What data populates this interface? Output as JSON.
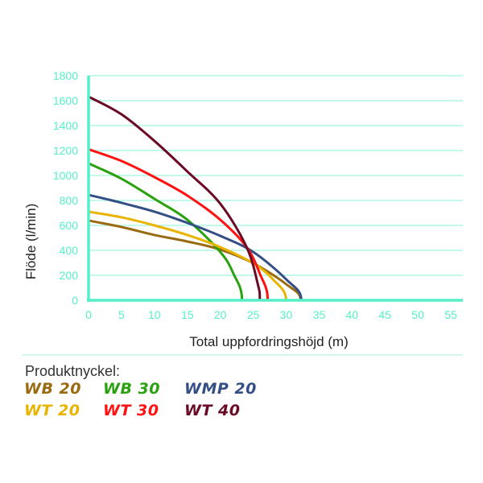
{
  "chart_data": {
    "type": "line",
    "xlabel": "Total uppfordringshöjd (m)",
    "ylabel": "Flöde (l/min)",
    "xlim": [
      0,
      55
    ],
    "ylim": [
      0,
      1800
    ],
    "xticks": [
      "0",
      "5",
      "10",
      "15",
      "20",
      "25",
      "30",
      "35",
      "40",
      "45",
      "50",
      "55"
    ],
    "yticks": [
      "0",
      "200",
      "400",
      "600",
      "800",
      "1000",
      "1200",
      "1400",
      "1600",
      "1800"
    ],
    "grid": "horizontal",
    "legend_title": "Produktnyckel:",
    "legend_placement": "bottom",
    "series": [
      {
        "name": "WB 20",
        "color": "#9a6a10",
        "points": [
          [
            0,
            639
          ],
          [
            5,
            587
          ],
          [
            10,
            523
          ],
          [
            15,
            471
          ],
          [
            20,
            406
          ],
          [
            25,
            297
          ],
          [
            30,
            129
          ],
          [
            32.2,
            0
          ]
        ]
      },
      {
        "name": "WB 30",
        "color": "#2aa10f",
        "points": [
          [
            0,
            1097
          ],
          [
            5,
            974
          ],
          [
            10,
            813
          ],
          [
            15,
            645
          ],
          [
            20,
            387
          ],
          [
            22,
            213
          ],
          [
            23.3,
            0
          ]
        ]
      },
      {
        "name": "WMP 20",
        "color": "#344f86",
        "points": [
          [
            0,
            845
          ],
          [
            5,
            781
          ],
          [
            10,
            710
          ],
          [
            15,
            620
          ],
          [
            20,
            516
          ],
          [
            25,
            387
          ],
          [
            30,
            168
          ],
          [
            32.3,
            0
          ]
        ]
      },
      {
        "name": "WT 20",
        "color": "#e8b400",
        "points": [
          [
            0,
            710
          ],
          [
            5,
            665
          ],
          [
            10,
            600
          ],
          [
            15,
            523
          ],
          [
            20,
            426
          ],
          [
            25,
            297
          ],
          [
            28,
            168
          ],
          [
            30,
            0
          ]
        ]
      },
      {
        "name": "WT 30",
        "color": "#ff1111",
        "points": [
          [
            0,
            1210
          ],
          [
            5,
            1116
          ],
          [
            10,
            987
          ],
          [
            15,
            839
          ],
          [
            20,
            645
          ],
          [
            24,
            426
          ],
          [
            26,
            213
          ],
          [
            27.2,
            0
          ]
        ]
      },
      {
        "name": "WT 40",
        "color": "#6b0a25",
        "points": [
          [
            0,
            1632
          ],
          [
            5,
            1490
          ],
          [
            10,
            1277
          ],
          [
            15,
            1032
          ],
          [
            20,
            774
          ],
          [
            24,
            426
          ],
          [
            25.7,
            129
          ],
          [
            26,
            0
          ]
        ]
      }
    ],
    "axis_color": "#55f0c8",
    "grid_color": "#9ff5de"
  }
}
